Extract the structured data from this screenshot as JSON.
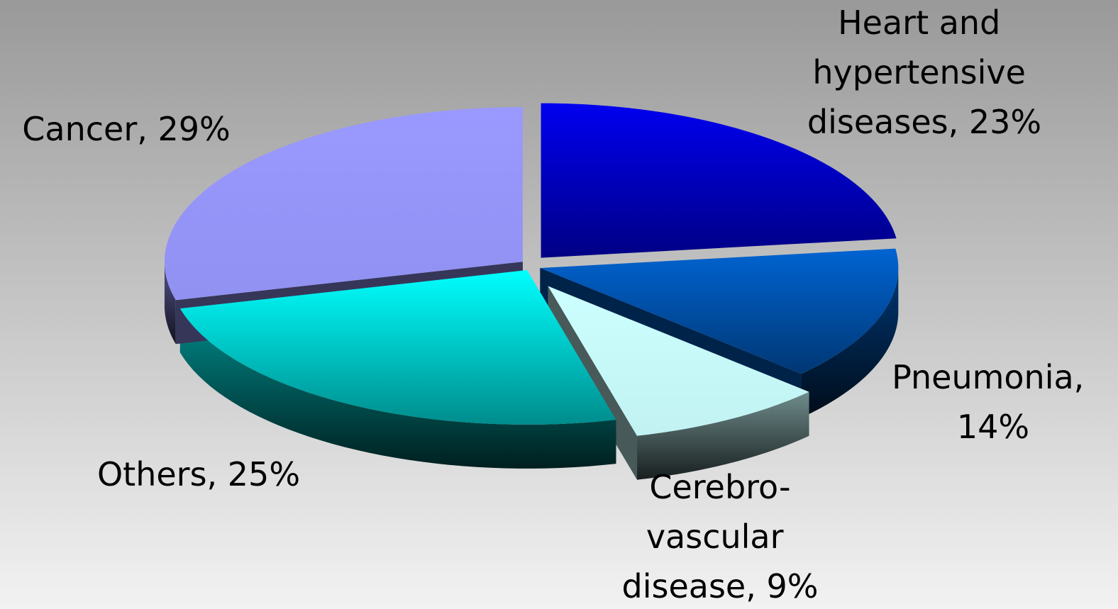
{
  "chart_data": {
    "type": "pie",
    "categories": [
      "Heart and hypertensive diseases",
      "Pneumonia",
      "Cerebro-vascular disease",
      "Others",
      "Cancer"
    ],
    "values": [
      23,
      14,
      9,
      25,
      29
    ],
    "value_labels": [
      "Heart and hypertensive diseases, 23%",
      "Pneumonia, 14%",
      "Cerebro-vascular disease, 9%",
      "Others, 25%",
      "Cancer, 29%"
    ],
    "colors": [
      "#0000f0",
      "#0064d2",
      "#ccffff",
      "#00ffff",
      "#9999ff"
    ]
  }
}
